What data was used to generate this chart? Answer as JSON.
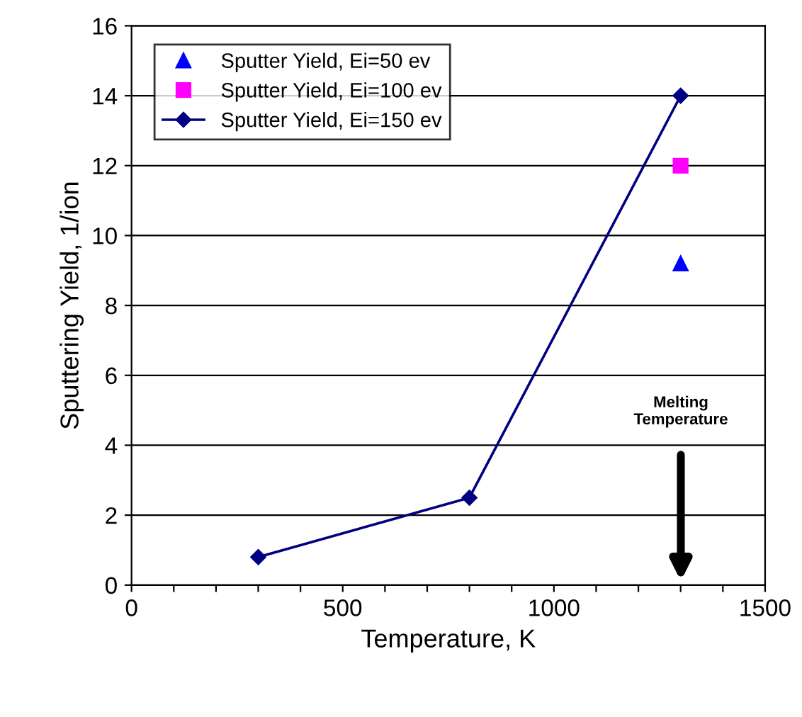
{
  "chart_data": {
    "type": "line",
    "xlabel": "Temperature, K",
    "ylabel": "Sputtering Yield, 1/ion",
    "xlim": [
      0,
      1500
    ],
    "ylim": [
      0,
      16
    ],
    "xticks": [
      0,
      {
        "value": 100,
        "label": null
      },
      {
        "value": 200,
        "label": null
      },
      {
        "value": 300,
        "label": null
      },
      {
        "value": 400,
        "label": null
      },
      500,
      {
        "value": 600,
        "label": null
      },
      {
        "value": 700,
        "label": null
      },
      {
        "value": 800,
        "label": null
      },
      {
        "value": 900,
        "label": null
      },
      1000,
      {
        "value": 1100,
        "label": null
      },
      {
        "value": 1200,
        "label": null
      },
      {
        "value": 1300,
        "label": null
      },
      {
        "value": 1400,
        "label": null
      },
      1500
    ],
    "yticks": [
      0,
      2,
      4,
      6,
      8,
      10,
      12,
      14,
      16
    ],
    "grid": "y",
    "legend": "top left",
    "series": [
      {
        "name": "Sputter Yield, Ei=50 ev",
        "type": "scatter",
        "marker": "triangle",
        "color": "#0000ff",
        "x": [
          1300
        ],
        "values": [
          9.2
        ]
      },
      {
        "name": "Sputter Yield, Ei=100 ev",
        "type": "scatter",
        "marker": "square",
        "color": "#ff00ff",
        "x": [
          1300
        ],
        "values": [
          12
        ]
      },
      {
        "name": "Sputter Yield, Ei=150 ev",
        "marker": "diamond",
        "color": "#000080",
        "x": [
          300,
          800,
          1300
        ],
        "values": [
          0.8,
          2.5,
          14
        ]
      }
    ],
    "annotations": [
      "Melting\nTemperature"
    ]
  }
}
